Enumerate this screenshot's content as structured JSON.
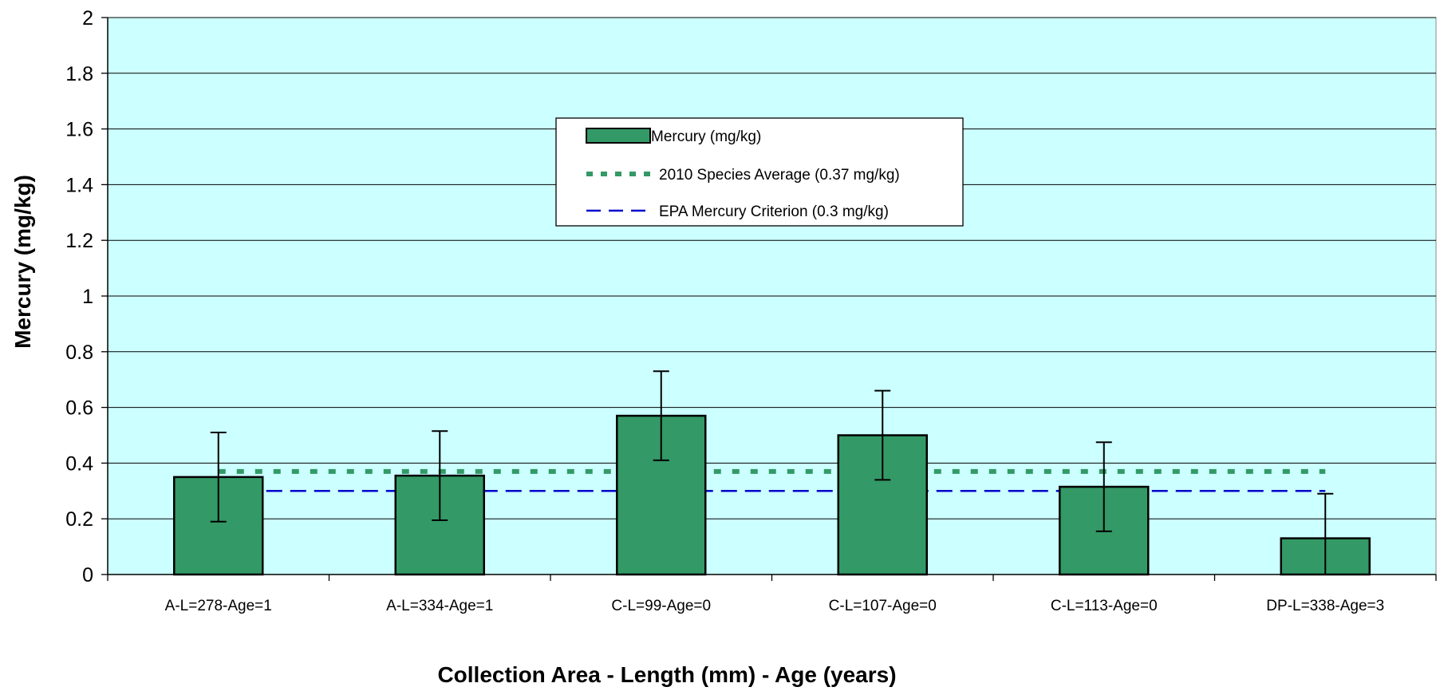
{
  "chart_data": {
    "type": "bar",
    "title": "",
    "xlabel": "Collection Area - Length (mm) - Age (years)",
    "ylabel": "Mercury (mg/kg)",
    "ylim": [
      0,
      2
    ],
    "yticks": [
      "0",
      "0.2",
      "0.4",
      "0.6",
      "0.8",
      "1",
      "1.2",
      "1.4",
      "1.6",
      "1.8",
      "2"
    ],
    "grid": true,
    "legend_position": "top-center",
    "categories": [
      "A-L=278-Age=1",
      "A-L=334-Age=1",
      "C-L=99-Age=0",
      "C-L=107-Age=0",
      "C-L=113-Age=0",
      "DP-L=338-Age=3"
    ],
    "series": [
      {
        "name": "Mercury (mg/kg)",
        "kind": "bar",
        "color": "#339966",
        "values": [
          0.35,
          0.355,
          0.57,
          0.5,
          0.315,
          0.13
        ],
        "error": [
          0.16,
          0.16,
          0.16,
          0.16,
          0.16,
          0.16
        ]
      },
      {
        "name": "2010  Species Average (0.37 mg/kg)",
        "kind": "reference-line",
        "style": "dotted",
        "color": "#339966",
        "value": 0.37
      },
      {
        "name": "EPA Mercury Criterion (0.3 mg/kg)",
        "kind": "reference-line",
        "style": "dashed",
        "color": "#0000cc",
        "value": 0.3
      }
    ],
    "colors": {
      "plot_background": "#ccffff",
      "bar": "#339966",
      "average_line": "#339966",
      "criterion_line": "#0000cc"
    }
  }
}
